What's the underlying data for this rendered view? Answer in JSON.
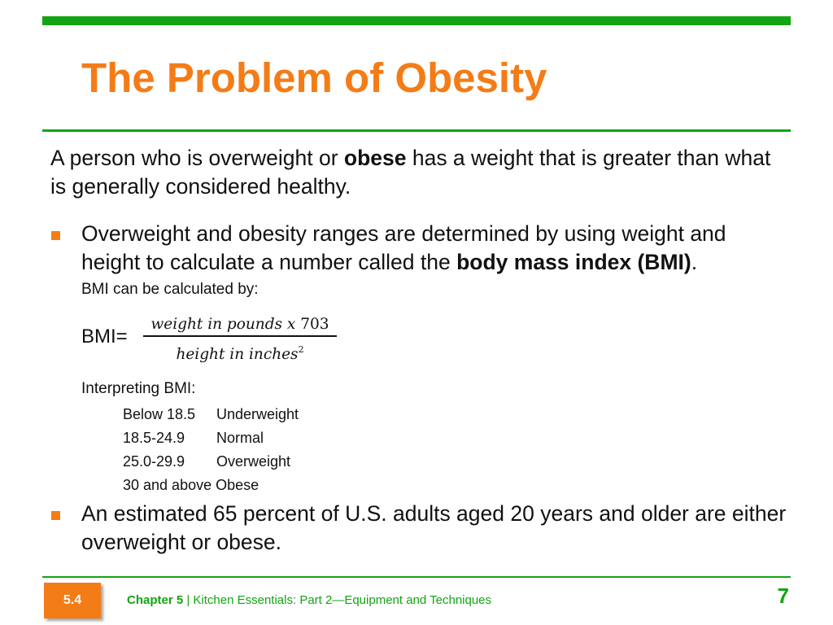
{
  "slide": {
    "title": "The Problem of Obesity",
    "intro": {
      "before": "A person who is overweight or ",
      "bold": "obese",
      "after": " has a weight that is greater than what is generally considered healthy."
    },
    "bullet1": {
      "before": "Overweight and obesity ranges are determined by using weight and height to calculate a number called the ",
      "bold": "body mass index (BMI)",
      "after": "."
    },
    "calc_label": "BMI can be calculated by:",
    "formula": {
      "lhs": "BMI=",
      "numerator_italic": "weight in pounds x ",
      "numerator_constant": "703",
      "denominator": "height in inches",
      "exponent": "2"
    },
    "interpret_label": "Interpreting  BMI:",
    "bmi_ranges": [
      {
        "range": "Below 18.5",
        "category": "Underweight"
      },
      {
        "range": "18.5-24.9",
        "category": "Normal"
      },
      {
        "range": "25.0-29.9",
        "category": "Overweight"
      },
      {
        "range": "30 and above",
        "category": "Obese"
      }
    ],
    "bullet2": "An estimated 65 percent of U.S. adults aged 20 years and older are either overweight or obese."
  },
  "footer": {
    "section": "5.4",
    "chapter": "Chapter 5",
    "separator": " | ",
    "subtitle": "Kitchen Essentials: Part 2—Equipment and Techniques",
    "page_number": "7"
  },
  "colors": {
    "accent_orange": "#f47c17",
    "accent_green": "#13a413",
    "text": "#111111"
  }
}
